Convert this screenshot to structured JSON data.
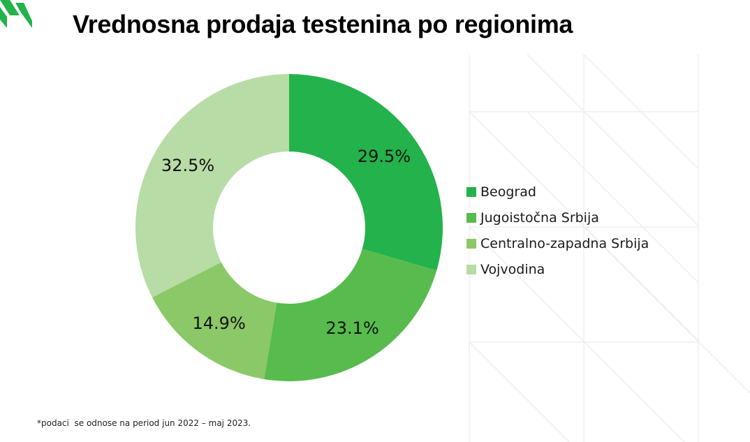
{
  "header": {
    "title": "Vrednosna prodaja testenina po regionima"
  },
  "chart_data": {
    "type": "pie",
    "variant": "donut",
    "categories": [
      "Beograd",
      "Jugoistočna Srbija",
      "Centralno-zapadna Srbija",
      "Vojvodina"
    ],
    "values": [
      29.5,
      23.1,
      14.9,
      32.5
    ],
    "value_labels": [
      "29.5%",
      "23.1%",
      "14.9%",
      "32.5%"
    ],
    "colors": [
      "#23b24b",
      "#57bb4d",
      "#8bc867",
      "#b8dca6"
    ],
    "legend_position": "right"
  },
  "legend": {
    "items": [
      {
        "label": "Beograd",
        "color": "#23b24b"
      },
      {
        "label": "Jugoistočna Srbija",
        "color": "#57bb4d"
      },
      {
        "label": "Centralno-zapadna Srbija",
        "color": "#8bc867"
      },
      {
        "label": "Vojvodina",
        "color": "#b8dca6"
      }
    ]
  },
  "footnote": "*podaci  se odnose na period jun 2022 – maj 2023.",
  "colors": {
    "logo": "#23b24b",
    "pattern_lines": "#ececec"
  }
}
